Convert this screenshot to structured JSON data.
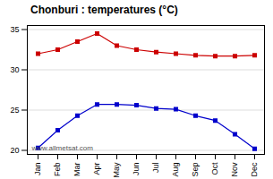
{
  "chart_data": {
    "type": "line",
    "title": "Chonburi : temperatures (°C)",
    "categories": [
      "Jan",
      "Feb",
      "Mar",
      "Apr",
      "May",
      "Jun",
      "Jul",
      "Aug",
      "Sep",
      "Oct",
      "Nov",
      "Dec"
    ],
    "series": [
      {
        "color": "#cc0000",
        "values": [
          32.0,
          32.5,
          33.5,
          34.5,
          33.0,
          32.5,
          32.2,
          32.0,
          31.8,
          31.7,
          31.7,
          31.8
        ]
      },
      {
        "color": "#0000cc",
        "values": [
          20.3,
          22.5,
          24.3,
          25.7,
          25.7,
          25.6,
          25.2,
          25.1,
          24.3,
          23.7,
          22.0,
          20.2
        ]
      }
    ],
    "marker": "square",
    "ylim": [
      19.5,
      35.5
    ],
    "yticks": [
      20,
      25,
      30,
      35
    ],
    "grid": "y",
    "annotations": [
      "www.allmetsat.com"
    ]
  }
}
